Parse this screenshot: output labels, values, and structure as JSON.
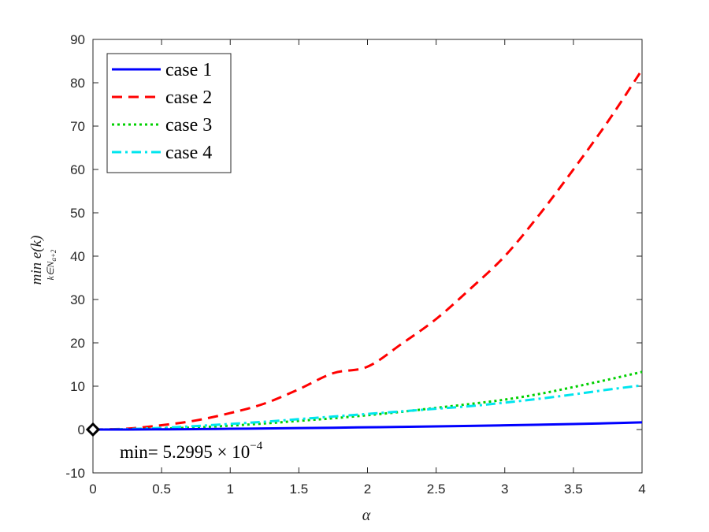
{
  "chart_data": {
    "type": "line",
    "title": "",
    "xlabel": "α",
    "ylabel": {
      "main": "min e(k)",
      "subscript": "k∈N",
      "subsubscript": "a+2"
    },
    "xlim": [
      0,
      4
    ],
    "ylim": [
      -10,
      90
    ],
    "xticks": [
      0,
      0.5,
      1,
      1.5,
      2,
      2.5,
      3,
      3.5,
      4
    ],
    "xtick_labels": [
      "0",
      "0.5",
      "1",
      "1.5",
      "2",
      "2.5",
      "3",
      "3.5",
      "4"
    ],
    "yticks": [
      -10,
      0,
      10,
      20,
      30,
      40,
      50,
      60,
      70,
      80,
      90
    ],
    "ytick_labels": [
      "-10",
      "0",
      "10",
      "20",
      "30",
      "40",
      "50",
      "60",
      "70",
      "80",
      "90"
    ],
    "grid": false,
    "legend_position": "top-left",
    "x": [
      0,
      0.25,
      0.5,
      0.75,
      1,
      1.25,
      1.5,
      1.75,
      2,
      2.25,
      2.5,
      2.75,
      3,
      3.25,
      3.5,
      3.75,
      4
    ],
    "series": [
      {
        "name": "case 1",
        "color": "#0000ff",
        "style": "solid",
        "values": [
          0,
          0.01,
          0.05,
          0.1,
          0.18,
          0.25,
          0.33,
          0.42,
          0.52,
          0.62,
          0.73,
          0.85,
          0.98,
          1.12,
          1.27,
          1.45,
          1.65
        ]
      },
      {
        "name": "case 2",
        "color": "#ff0000",
        "style": "dashed",
        "values": [
          0,
          0.2,
          1.0,
          2.1,
          3.8,
          6.0,
          9.3,
          13.0,
          14.5,
          19.8,
          25.5,
          32.5,
          40.0,
          49.5,
          60.0,
          71.0,
          83.0
        ]
      },
      {
        "name": "case 3",
        "color": "#00d000",
        "style": "dotted",
        "values": [
          0,
          0.05,
          0.2,
          0.5,
          0.9,
          1.4,
          2.0,
          2.6,
          3.3,
          4.1,
          5.0,
          5.9,
          6.9,
          8.2,
          9.8,
          11.5,
          13.3
        ]
      },
      {
        "name": "case 4",
        "color": "#00e5ee",
        "style": "dashdot",
        "values": [
          0,
          0.1,
          0.4,
          0.8,
          1.3,
          1.8,
          2.4,
          3.0,
          3.6,
          4.2,
          4.8,
          5.4,
          6.2,
          7.1,
          8.1,
          9.2,
          10.2
        ]
      }
    ],
    "marker": {
      "label": "min point",
      "x": 0,
      "y": 0.00052995,
      "shape": "diamond"
    },
    "annotation": {
      "prefix": "min= 5.2995 × 10",
      "exponent": "−4"
    }
  }
}
